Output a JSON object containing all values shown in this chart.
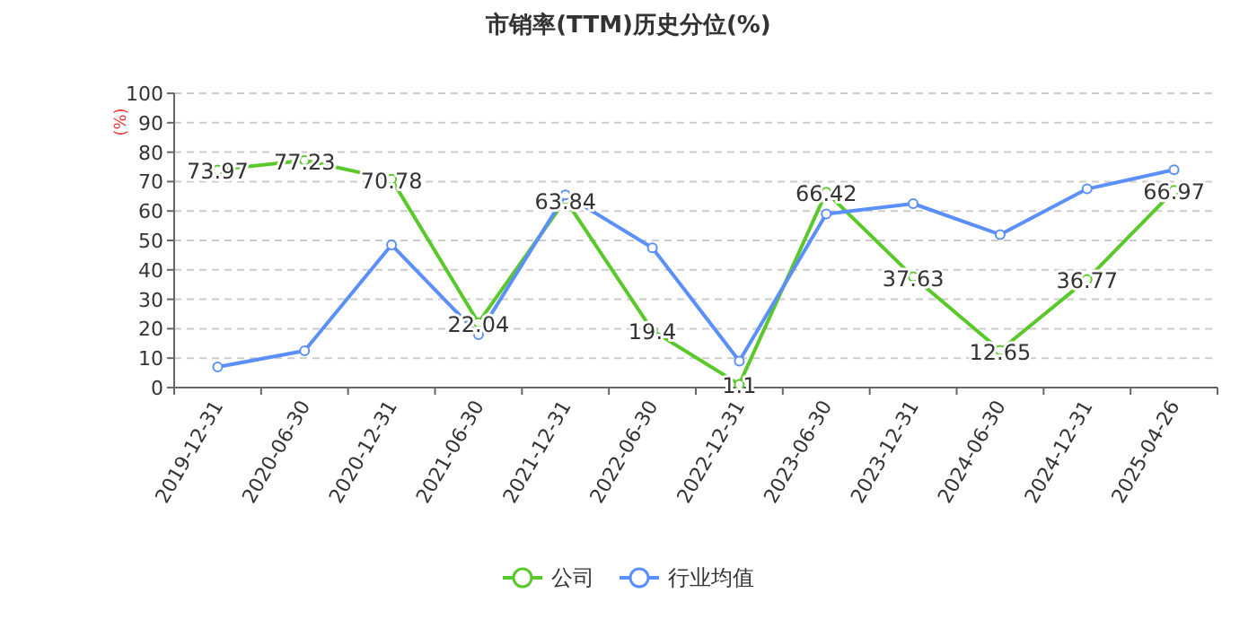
{
  "chart_data": {
    "type": "line",
    "title": "市销率(TTM)历史分位(%)",
    "ylabel": "(%)",
    "categories": [
      "2019-12-31",
      "2020-06-30",
      "2020-12-31",
      "2021-06-30",
      "2021-12-31",
      "2022-06-30",
      "2022-12-31",
      "2023-06-30",
      "2023-12-31",
      "2024-06-30",
      "2024-12-31",
      "2025-04-26"
    ],
    "series": [
      {
        "name": "公司",
        "color": "#5ac82a",
        "values": [
          73.97,
          77.23,
          70.78,
          22.04,
          63.84,
          19.4,
          1.1,
          66.42,
          37.63,
          12.65,
          36.77,
          66.97
        ],
        "data_labels": true
      },
      {
        "name": "行业均值",
        "color": "#5b8ff9",
        "values": [
          7,
          12.5,
          48.5,
          18,
          65.5,
          47.5,
          9,
          59,
          62.5,
          52,
          67.5,
          74
        ]
      }
    ],
    "ylim": [
      0,
      100
    ],
    "yticks": [
      0,
      10,
      20,
      30,
      40,
      50,
      60,
      70,
      80,
      90,
      100
    ],
    "grid": "y",
    "legend": "bottom",
    "marker": "circle",
    "line_style": "solid"
  }
}
